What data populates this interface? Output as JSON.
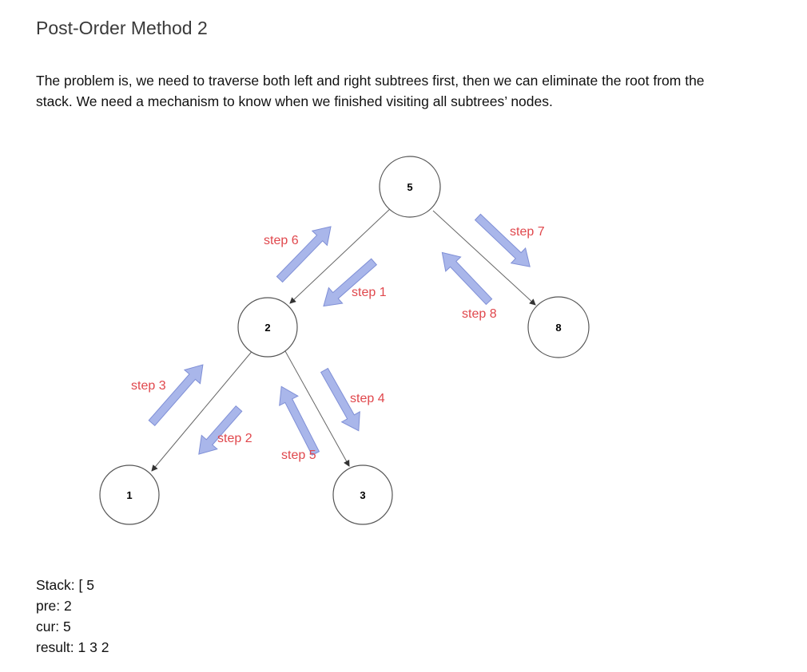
{
  "title": "Post-Order Method 2",
  "paragraph": "The problem is, we need to traverse both left and right subtrees first, then we can eliminate the root from the stack. We need a mechanism to know when we finished visiting all subtrees’ nodes.",
  "tree": {
    "nodes": [
      "5",
      "2",
      "8",
      "1",
      "3"
    ],
    "edges": [
      [
        "5",
        "2"
      ],
      [
        "5",
        "8"
      ],
      [
        "2",
        "1"
      ],
      [
        "2",
        "3"
      ]
    ]
  },
  "steps": {
    "step1": "step 1",
    "step2": "step 2",
    "step3": "step 3",
    "step4": "step 4",
    "step5": "step 5",
    "step6": "step 6",
    "step7": "step 7",
    "step8": "step 8"
  },
  "status": {
    "stack": "Stack: [ 5",
    "pre": "pre: 2",
    "cur": "cur: 5",
    "result": "result: 1 3 2"
  },
  "colors": {
    "arrow_fill": "#a9b6ea",
    "arrow_stroke": "#7f8fd6",
    "step_text": "#e0474c",
    "node_stroke": "#555555",
    "edge": "#666666"
  }
}
